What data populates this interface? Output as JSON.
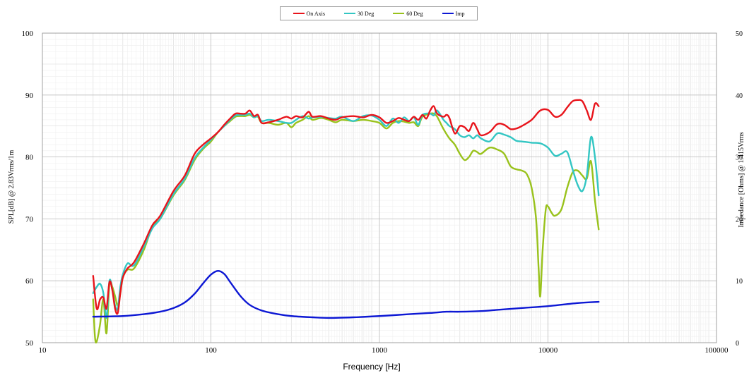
{
  "chart_data": {
    "type": "line",
    "xlabel": "Frequency [Hz]",
    "ylabel_left": "SPL[dB] @ 2.83Vrms/1m",
    "ylabel_right": "Impedance [Ohms] @ 1.415Vrms",
    "x_scale": "log",
    "xlim": [
      10,
      100000
    ],
    "ylim_left": [
      50,
      100
    ],
    "ylim_right": [
      0,
      50
    ],
    "x_ticks": [
      "10",
      "100",
      "1000",
      "10000",
      "100000"
    ],
    "y_ticks_left": [
      "50",
      "60",
      "70",
      "80",
      "90",
      "100"
    ],
    "y_ticks_right": [
      "0",
      "10",
      "20",
      "30",
      "40",
      "50"
    ],
    "grid": true,
    "legend_position": "top-center",
    "series": [
      {
        "name": "On Axis",
        "color": "#e8141b",
        "axis": "left",
        "points": [
          [
            20,
            60.8
          ],
          [
            21,
            55.5
          ],
          [
            22,
            57
          ],
          [
            23,
            57.3
          ],
          [
            24,
            55.5
          ],
          [
            25,
            59.8
          ],
          [
            26,
            58.5
          ],
          [
            27,
            55.5
          ],
          [
            28,
            54.8
          ],
          [
            29,
            58
          ],
          [
            30,
            60.5
          ],
          [
            32,
            62
          ],
          [
            35,
            63
          ],
          [
            40,
            66
          ],
          [
            45,
            69
          ],
          [
            50,
            70.5
          ],
          [
            60,
            74.5
          ],
          [
            70,
            77
          ],
          [
            80,
            80.5
          ],
          [
            90,
            82
          ],
          [
            100,
            83
          ],
          [
            110,
            84
          ],
          [
            120,
            85.2
          ],
          [
            130,
            86.2
          ],
          [
            140,
            87
          ],
          [
            150,
            87
          ],
          [
            160,
            87
          ],
          [
            170,
            87.5
          ],
          [
            180,
            86.6
          ],
          [
            190,
            86.8
          ],
          [
            200,
            85.5
          ],
          [
            220,
            85.6
          ],
          [
            250,
            86
          ],
          [
            280,
            86.5
          ],
          [
            300,
            86.2
          ],
          [
            320,
            86.6
          ],
          [
            350,
            86.4
          ],
          [
            380,
            87.3
          ],
          [
            400,
            86.5
          ],
          [
            450,
            86.6
          ],
          [
            500,
            86.2
          ],
          [
            550,
            86
          ],
          [
            600,
            86.4
          ],
          [
            700,
            86.6
          ],
          [
            800,
            86.4
          ],
          [
            900,
            86.8
          ],
          [
            1000,
            86.4
          ],
          [
            1100,
            85.5
          ],
          [
            1200,
            85.8
          ],
          [
            1300,
            86.3
          ],
          [
            1400,
            86
          ],
          [
            1500,
            85.8
          ],
          [
            1600,
            86.5
          ],
          [
            1700,
            86
          ],
          [
            1800,
            86.8
          ],
          [
            1900,
            86.2
          ],
          [
            2000,
            87.5
          ],
          [
            2100,
            88.2
          ],
          [
            2200,
            87
          ],
          [
            2400,
            86.5
          ],
          [
            2500,
            86.8
          ],
          [
            2600,
            86.3
          ],
          [
            2800,
            83.8
          ],
          [
            3000,
            85
          ],
          [
            3200,
            84.8
          ],
          [
            3400,
            84.2
          ],
          [
            3600,
            85.5
          ],
          [
            3800,
            84.5
          ],
          [
            4000,
            83.5
          ],
          [
            4500,
            84
          ],
          [
            5000,
            85.3
          ],
          [
            5500,
            85.2
          ],
          [
            6000,
            84.5
          ],
          [
            6500,
            84.6
          ],
          [
            7000,
            85
          ],
          [
            8000,
            86
          ],
          [
            9000,
            87.5
          ],
          [
            10000,
            87.6
          ],
          [
            11000,
            86.5
          ],
          [
            12000,
            86.8
          ],
          [
            13000,
            88
          ],
          [
            14000,
            89
          ],
          [
            15000,
            89.2
          ],
          [
            16000,
            89
          ],
          [
            17000,
            87.5
          ],
          [
            18000,
            86
          ],
          [
            19000,
            88.6
          ],
          [
            20000,
            88.2
          ]
        ]
      },
      {
        "name": "30 Deg",
        "color": "#33c6c3",
        "axis": "left",
        "points": [
          [
            20,
            58
          ],
          [
            21,
            59
          ],
          [
            22,
            59.5
          ],
          [
            23,
            58
          ],
          [
            24,
            54
          ],
          [
            25,
            60
          ],
          [
            26,
            58.5
          ],
          [
            27,
            56
          ],
          [
            28,
            55.5
          ],
          [
            29,
            59
          ],
          [
            30,
            61
          ],
          [
            32,
            62.8
          ],
          [
            35,
            62.5
          ],
          [
            40,
            65.5
          ],
          [
            45,
            68.5
          ],
          [
            50,
            70
          ],
          [
            60,
            74
          ],
          [
            70,
            76.5
          ],
          [
            80,
            79.8
          ],
          [
            90,
            81.5
          ],
          [
            100,
            82.8
          ],
          [
            110,
            84
          ],
          [
            120,
            85
          ],
          [
            130,
            86
          ],
          [
            140,
            86.7
          ],
          [
            150,
            86.8
          ],
          [
            160,
            86.8
          ],
          [
            170,
            87
          ],
          [
            180,
            86.4
          ],
          [
            190,
            86.6
          ],
          [
            200,
            85.8
          ],
          [
            220,
            86
          ],
          [
            250,
            85.8
          ],
          [
            280,
            85.5
          ],
          [
            300,
            85.5
          ],
          [
            320,
            86
          ],
          [
            350,
            86.6
          ],
          [
            380,
            86.2
          ],
          [
            400,
            86.4
          ],
          [
            450,
            86.5
          ],
          [
            500,
            86.3
          ],
          [
            550,
            86.2
          ],
          [
            600,
            86.5
          ],
          [
            700,
            85.8
          ],
          [
            800,
            86.6
          ],
          [
            900,
            86.7
          ],
          [
            1000,
            86
          ],
          [
            1100,
            85
          ],
          [
            1200,
            86.2
          ],
          [
            1300,
            85.5
          ],
          [
            1400,
            86.4
          ],
          [
            1500,
            85.8
          ],
          [
            1600,
            86.4
          ],
          [
            1700,
            85.2
          ],
          [
            1800,
            86.8
          ],
          [
            2000,
            87
          ],
          [
            2100,
            86.7
          ],
          [
            2200,
            87.5
          ],
          [
            2400,
            86
          ],
          [
            2500,
            85.5
          ],
          [
            2600,
            85
          ],
          [
            2800,
            84.5
          ],
          [
            3000,
            83.5
          ],
          [
            3200,
            83.2
          ],
          [
            3400,
            83.5
          ],
          [
            3600,
            83
          ],
          [
            3800,
            83.5
          ],
          [
            4000,
            83
          ],
          [
            4500,
            82.5
          ],
          [
            5000,
            83.8
          ],
          [
            5500,
            83.6
          ],
          [
            6000,
            83.2
          ],
          [
            6500,
            82.6
          ],
          [
            7000,
            82.5
          ],
          [
            8000,
            82.3
          ],
          [
            9000,
            82.2
          ],
          [
            10000,
            81.5
          ],
          [
            11000,
            80.2
          ],
          [
            12000,
            80.5
          ],
          [
            13000,
            80.8
          ],
          [
            14000,
            78
          ],
          [
            15000,
            75.5
          ],
          [
            16000,
            74.5
          ],
          [
            17000,
            77
          ],
          [
            18000,
            83.2
          ],
          [
            19000,
            80
          ],
          [
            20000,
            73.8
          ]
        ]
      },
      {
        "name": "60 Deg",
        "color": "#99c21c",
        "axis": "left",
        "points": [
          [
            20,
            57
          ],
          [
            20.5,
            51
          ],
          [
            21,
            50.2
          ],
          [
            22,
            53
          ],
          [
            23,
            57
          ],
          [
            24,
            51.5
          ],
          [
            25,
            59.5
          ],
          [
            26,
            59
          ],
          [
            27,
            57.5
          ],
          [
            28,
            56
          ],
          [
            29,
            58
          ],
          [
            30,
            60.5
          ],
          [
            32,
            61.8
          ],
          [
            35,
            62
          ],
          [
            40,
            65
          ],
          [
            45,
            68.8
          ],
          [
            50,
            70
          ],
          [
            60,
            73.8
          ],
          [
            70,
            76.3
          ],
          [
            80,
            79.5
          ],
          [
            90,
            81.3
          ],
          [
            100,
            82.5
          ],
          [
            110,
            84
          ],
          [
            120,
            85
          ],
          [
            130,
            85.8
          ],
          [
            140,
            86.5
          ],
          [
            150,
            86.6
          ],
          [
            160,
            86.6
          ],
          [
            170,
            86.8
          ],
          [
            180,
            86.4
          ],
          [
            190,
            86.5
          ],
          [
            200,
            85.5
          ],
          [
            220,
            85.5
          ],
          [
            250,
            85.2
          ],
          [
            280,
            85.5
          ],
          [
            300,
            84.8
          ],
          [
            320,
            85.5
          ],
          [
            350,
            86
          ],
          [
            380,
            86.6
          ],
          [
            400,
            86
          ],
          [
            450,
            86.3
          ],
          [
            500,
            86
          ],
          [
            550,
            85.6
          ],
          [
            600,
            86
          ],
          [
            700,
            85.8
          ],
          [
            800,
            86
          ],
          [
            900,
            85.8
          ],
          [
            1000,
            85.5
          ],
          [
            1100,
            84.6
          ],
          [
            1200,
            85.5
          ],
          [
            1300,
            85.8
          ],
          [
            1400,
            85.7
          ],
          [
            1500,
            85.5
          ],
          [
            1600,
            85.6
          ],
          [
            1700,
            85
          ],
          [
            1800,
            86.5
          ],
          [
            2000,
            87
          ],
          [
            2100,
            87
          ],
          [
            2200,
            86.5
          ],
          [
            2400,
            84.5
          ],
          [
            2600,
            83
          ],
          [
            2800,
            82
          ],
          [
            3000,
            80.5
          ],
          [
            3200,
            79.5
          ],
          [
            3400,
            80
          ],
          [
            3600,
            81
          ],
          [
            3800,
            80.8
          ],
          [
            4000,
            80.5
          ],
          [
            4500,
            81.5
          ],
          [
            5000,
            81.2
          ],
          [
            5500,
            80.5
          ],
          [
            6000,
            78.5
          ],
          [
            6500,
            78
          ],
          [
            7000,
            77.8
          ],
          [
            7500,
            77.2
          ],
          [
            8000,
            75
          ],
          [
            8500,
            70
          ],
          [
            8800,
            62
          ],
          [
            9000,
            57.5
          ],
          [
            9300,
            65
          ],
          [
            9700,
            71.5
          ],
          [
            10000,
            72
          ],
          [
            10500,
            71
          ],
          [
            11000,
            70.5
          ],
          [
            12000,
            71.5
          ],
          [
            13000,
            75
          ],
          [
            14000,
            77.5
          ],
          [
            15000,
            77.8
          ],
          [
            16000,
            77
          ],
          [
            17000,
            76.5
          ],
          [
            18000,
            79.3
          ],
          [
            19000,
            73
          ],
          [
            20000,
            68.3
          ]
        ]
      },
      {
        "name": "Imp",
        "color": "#0d18d4",
        "axis": "right",
        "points": [
          [
            20,
            4.2
          ],
          [
            30,
            4.3
          ],
          [
            40,
            4.6
          ],
          [
            50,
            5
          ],
          [
            60,
            5.6
          ],
          [
            70,
            6.5
          ],
          [
            80,
            7.9
          ],
          [
            90,
            9.6
          ],
          [
            100,
            11
          ],
          [
            110,
            11.6
          ],
          [
            120,
            11.1
          ],
          [
            130,
            9.8
          ],
          [
            150,
            7.5
          ],
          [
            170,
            6.1
          ],
          [
            200,
            5.2
          ],
          [
            250,
            4.6
          ],
          [
            300,
            4.3
          ],
          [
            400,
            4.1
          ],
          [
            500,
            4
          ],
          [
            700,
            4.1
          ],
          [
            1000,
            4.3
          ],
          [
            1500,
            4.6
          ],
          [
            2000,
            4.8
          ],
          [
            2500,
            5
          ],
          [
            3000,
            5
          ],
          [
            4000,
            5.1
          ],
          [
            5000,
            5.3
          ],
          [
            7000,
            5.6
          ],
          [
            10000,
            5.9
          ],
          [
            15000,
            6.4
          ],
          [
            20000,
            6.6
          ]
        ]
      }
    ]
  }
}
